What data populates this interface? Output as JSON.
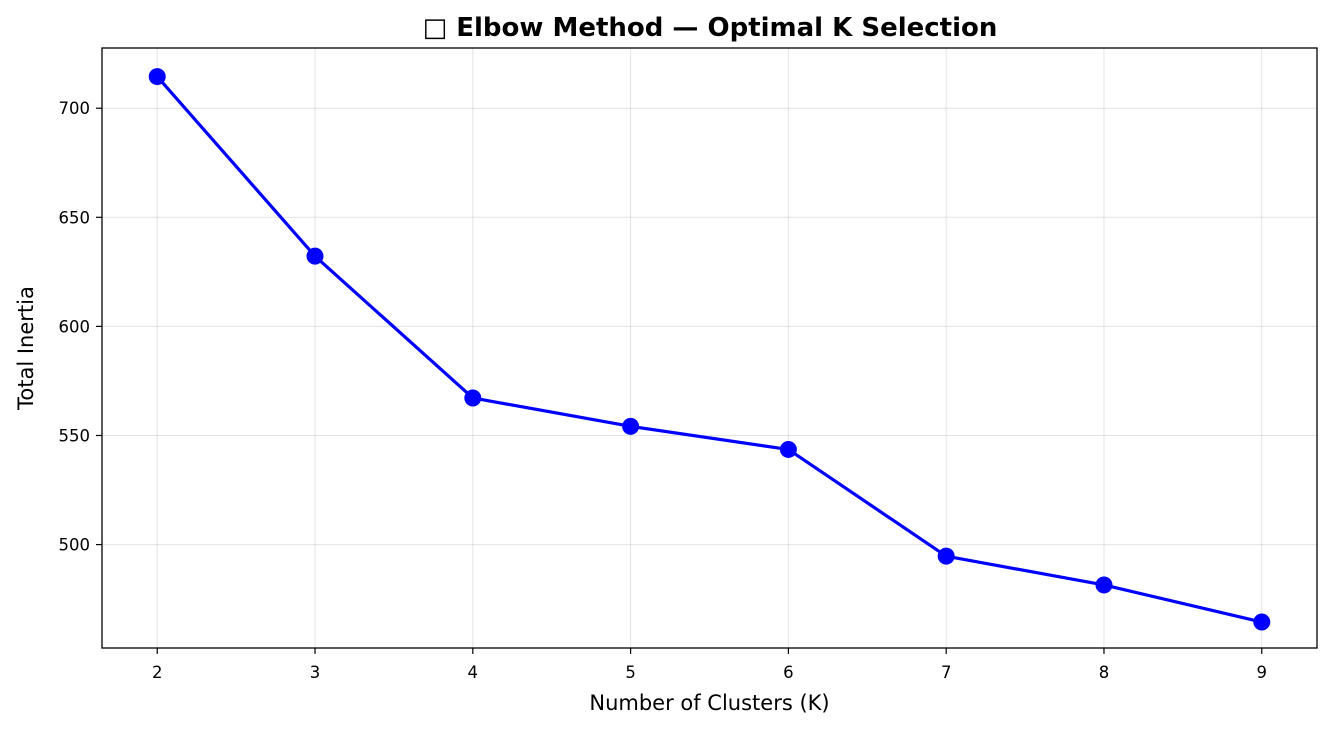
{
  "chart_data": {
    "type": "line",
    "title": "□ Elbow Method — Optimal K Selection",
    "xlabel": "Number of Clusters (K)",
    "ylabel": "Total Inertia",
    "x": [
      2,
      3,
      4,
      5,
      6,
      7,
      8,
      9
    ],
    "x_tick_labels": [
      "2",
      "3",
      "4",
      "5",
      "6",
      "7",
      "8",
      "9"
    ],
    "y_ticks": [
      500,
      550,
      600,
      650,
      700
    ],
    "y_tick_labels": [
      "500",
      "550",
      "600",
      "650",
      "700"
    ],
    "series": [
      {
        "values": [
          714.5,
          632.2,
          567.2,
          554.2,
          543.6,
          494.7,
          481.5,
          464.5
        ],
        "color": "#0000ff",
        "marker": "circle"
      }
    ],
    "xlim": [
      1.65,
      9.35
    ],
    "ylim": [
      452.6,
      727.6
    ],
    "grid": true,
    "legend": false
  }
}
